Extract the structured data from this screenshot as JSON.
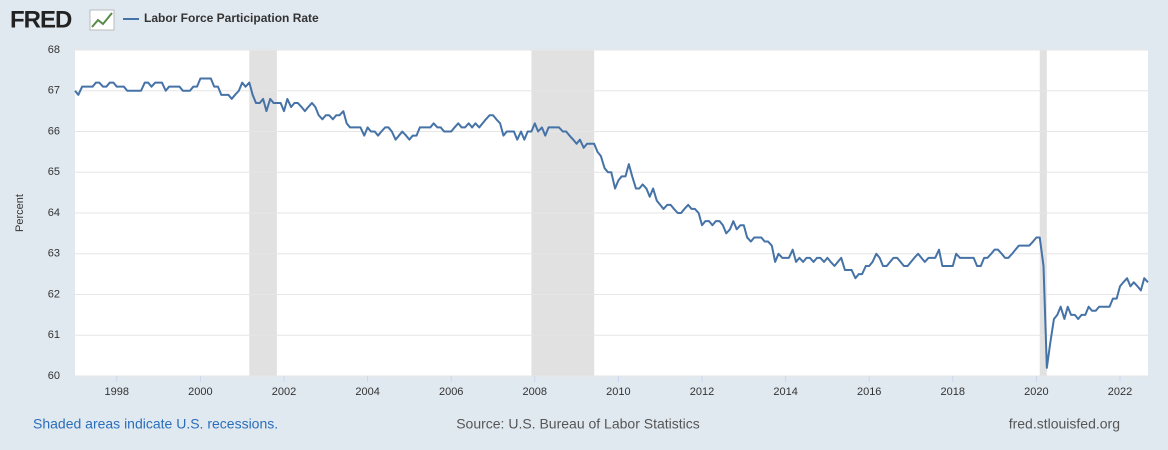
{
  "header": {
    "logo": "FRED"
  },
  "chart_data": {
    "type": "line",
    "series": [
      {
        "name": "Labor Force Participation Rate",
        "color": "#4572a7",
        "values": [
          67.0,
          66.9,
          67.1,
          67.1,
          67.1,
          67.1,
          67.2,
          67.2,
          67.1,
          67.1,
          67.2,
          67.2,
          67.1,
          67.1,
          67.1,
          67.0,
          67.0,
          67.0,
          67.0,
          67.0,
          67.2,
          67.2,
          67.1,
          67.2,
          67.2,
          67.2,
          67.0,
          67.1,
          67.1,
          67.1,
          67.1,
          67.0,
          67.0,
          67.0,
          67.1,
          67.1,
          67.3,
          67.3,
          67.3,
          67.3,
          67.1,
          67.1,
          66.9,
          66.9,
          66.9,
          66.8,
          66.9,
          67.0,
          67.2,
          67.1,
          67.2,
          66.9,
          66.7,
          66.7,
          66.8,
          66.5,
          66.8,
          66.7,
          66.7,
          66.7,
          66.5,
          66.8,
          66.6,
          66.7,
          66.7,
          66.6,
          66.5,
          66.6,
          66.7,
          66.6,
          66.4,
          66.3,
          66.4,
          66.4,
          66.3,
          66.4,
          66.4,
          66.5,
          66.2,
          66.1,
          66.1,
          66.1,
          66.1,
          65.9,
          66.1,
          66.0,
          66.0,
          65.9,
          66.0,
          66.1,
          66.1,
          66.0,
          65.8,
          65.9,
          66.0,
          65.9,
          65.8,
          65.9,
          65.9,
          66.1,
          66.1,
          66.1,
          66.1,
          66.2,
          66.1,
          66.1,
          66.0,
          66.0,
          66.0,
          66.1,
          66.2,
          66.1,
          66.1,
          66.2,
          66.1,
          66.2,
          66.1,
          66.2,
          66.3,
          66.4,
          66.4,
          66.3,
          66.2,
          65.9,
          66.0,
          66.0,
          66.0,
          65.8,
          66.0,
          65.8,
          66.0,
          66.0,
          66.2,
          66.0,
          66.1,
          65.9,
          66.1,
          66.1,
          66.1,
          66.1,
          66.0,
          66.0,
          65.9,
          65.8,
          65.7,
          65.8,
          65.6,
          65.7,
          65.7,
          65.7,
          65.5,
          65.4,
          65.1,
          65.0,
          65.0,
          64.6,
          64.8,
          64.9,
          64.9,
          65.2,
          64.9,
          64.6,
          64.6,
          64.7,
          64.6,
          64.4,
          64.6,
          64.3,
          64.2,
          64.1,
          64.2,
          64.2,
          64.1,
          64.0,
          64.0,
          64.1,
          64.2,
          64.1,
          64.1,
          64.0,
          63.7,
          63.8,
          63.8,
          63.7,
          63.8,
          63.8,
          63.7,
          63.5,
          63.6,
          63.8,
          63.6,
          63.7,
          63.7,
          63.4,
          63.3,
          63.4,
          63.4,
          63.4,
          63.3,
          63.3,
          63.2,
          62.8,
          63.0,
          62.9,
          62.9,
          62.9,
          63.1,
          62.8,
          62.9,
          62.8,
          62.9,
          62.9,
          62.8,
          62.9,
          62.9,
          62.8,
          62.9,
          62.8,
          62.7,
          62.8,
          62.9,
          62.6,
          62.6,
          62.6,
          62.4,
          62.5,
          62.5,
          62.7,
          62.7,
          62.8,
          63.0,
          62.9,
          62.7,
          62.7,
          62.8,
          62.9,
          62.9,
          62.8,
          62.7,
          62.7,
          62.8,
          62.9,
          63.0,
          62.9,
          62.8,
          62.9,
          62.9,
          62.9,
          63.1,
          62.7,
          62.7,
          62.7,
          62.7,
          63.0,
          62.9,
          62.9,
          62.9,
          62.9,
          62.9,
          62.7,
          62.7,
          62.9,
          62.9,
          63.0,
          63.1,
          63.1,
          63.0,
          62.9,
          62.9,
          63.0,
          63.1,
          63.2,
          63.2,
          63.2,
          63.2,
          63.3,
          63.4,
          63.4,
          62.7,
          60.2,
          60.8,
          61.4,
          61.5,
          61.7,
          61.4,
          61.7,
          61.5,
          61.5,
          61.4,
          61.5,
          61.5,
          61.7,
          61.6,
          61.6,
          61.7,
          61.7,
          61.7,
          61.7,
          61.9,
          61.9,
          62.2,
          62.3,
          62.4,
          62.2,
          62.3,
          62.2,
          62.1,
          62.4,
          62.3
        ]
      }
    ],
    "x": [
      1997,
      1997.08,
      1997.17,
      1997.25,
      1997.33,
      1997.42,
      1997.5,
      1997.58,
      1997.67,
      1997.75,
      1997.83,
      1997.92,
      1998,
      1998.08,
      1998.17,
      1998.25,
      1998.33,
      1998.42,
      1998.5,
      1998.58,
      1998.67,
      1998.75,
      1998.83,
      1998.92,
      1999,
      1999.08,
      1999.17,
      1999.25,
      1999.33,
      1999.42,
      1999.5,
      1999.58,
      1999.67,
      1999.75,
      1999.83,
      1999.92,
      2000,
      2000.08,
      2000.17,
      2000.25,
      2000.33,
      2000.42,
      2000.5,
      2000.58,
      2000.67,
      2000.75,
      2000.83,
      2000.92,
      2001,
      2001.08,
      2001.17,
      2001.25,
      2001.33,
      2001.42,
      2001.5,
      2001.58,
      2001.67,
      2001.75,
      2001.83,
      2001.92,
      2002,
      2002.08,
      2002.17,
      2002.25,
      2002.33,
      2002.42,
      2002.5,
      2002.58,
      2002.67,
      2002.75,
      2002.83,
      2002.92,
      2003,
      2003.08,
      2003.17,
      2003.25,
      2003.33,
      2003.42,
      2003.5,
      2003.58,
      2003.67,
      2003.75,
      2003.83,
      2003.92,
      2004,
      2004.08,
      2004.17,
      2004.25,
      2004.33,
      2004.42,
      2004.5,
      2004.58,
      2004.67,
      2004.75,
      2004.83,
      2004.92,
      2005,
      2005.08,
      2005.17,
      2005.25,
      2005.33,
      2005.42,
      2005.5,
      2005.58,
      2005.67,
      2005.75,
      2005.83,
      2005.92,
      2006,
      2006.08,
      2006.17,
      2006.25,
      2006.33,
      2006.42,
      2006.5,
      2006.58,
      2006.67,
      2006.75,
      2006.83,
      2006.92,
      2007,
      2007.08,
      2007.17,
      2007.25,
      2007.33,
      2007.42,
      2007.5,
      2007.58,
      2007.67,
      2007.75,
      2007.83,
      2007.92,
      2008,
      2008.08,
      2008.17,
      2008.25,
      2008.33,
      2008.42,
      2008.5,
      2008.58,
      2008.67,
      2008.75,
      2008.83,
      2008.92,
      2009,
      2009.08,
      2009.17,
      2009.25,
      2009.33,
      2009.42,
      2009.5,
      2009.58,
      2009.67,
      2009.75,
      2009.83,
      2009.92,
      2010,
      2010.08,
      2010.17,
      2010.25,
      2010.33,
      2010.42,
      2010.5,
      2010.58,
      2010.67,
      2010.75,
      2010.83,
      2010.92,
      2011,
      2011.08,
      2011.17,
      2011.25,
      2011.33,
      2011.42,
      2011.5,
      2011.58,
      2011.67,
      2011.75,
      2011.83,
      2011.92,
      2012,
      2012.08,
      2012.17,
      2012.25,
      2012.33,
      2012.42,
      2012.5,
      2012.58,
      2012.67,
      2012.75,
      2012.83,
      2012.92,
      2013,
      2013.08,
      2013.17,
      2013.25,
      2013.33,
      2013.42,
      2013.5,
      2013.58,
      2013.67,
      2013.75,
      2013.83,
      2013.92,
      2014,
      2014.08,
      2014.17,
      2014.25,
      2014.33,
      2014.42,
      2014.5,
      2014.58,
      2014.67,
      2014.75,
      2014.83,
      2014.92,
      2015,
      2015.08,
      2015.17,
      2015.25,
      2015.33,
      2015.42,
      2015.5,
      2015.58,
      2015.67,
      2015.75,
      2015.83,
      2015.92,
      2016,
      2016.08,
      2016.17,
      2016.25,
      2016.33,
      2016.42,
      2016.5,
      2016.58,
      2016.67,
      2016.75,
      2016.83,
      2016.92,
      2017,
      2017.08,
      2017.17,
      2017.25,
      2017.33,
      2017.42,
      2017.5,
      2017.58,
      2017.67,
      2017.75,
      2017.83,
      2017.92,
      2018,
      2018.08,
      2018.17,
      2018.25,
      2018.33,
      2018.42,
      2018.5,
      2018.58,
      2018.67,
      2018.75,
      2018.83,
      2018.92,
      2019,
      2019.08,
      2019.17,
      2019.25,
      2019.33,
      2019.42,
      2019.5,
      2019.58,
      2019.67,
      2019.75,
      2019.83,
      2019.92,
      2020,
      2020.08,
      2020.17,
      2020.25,
      2020.33,
      2020.42,
      2020.5,
      2020.58,
      2020.67,
      2020.75,
      2020.83,
      2020.92,
      2021,
      2021.08,
      2021.17,
      2021.25,
      2021.33,
      2021.42,
      2021.5,
      2021.58,
      2021.67,
      2021.75,
      2021.83,
      2021.92,
      2022,
      2022.08,
      2022.17,
      2022.25,
      2022.33,
      2022.42,
      2022.5,
      2022.58,
      2022.67
    ],
    "recessions": [
      [
        2001.17,
        2001.83
      ],
      [
        2007.92,
        2009.42
      ],
      [
        2020.08,
        2020.25
      ]
    ],
    "recession_color": "#e1e1e1",
    "xlim": [
      1997,
      2022.67
    ],
    "xticks": [
      1998,
      2000,
      2002,
      2004,
      2006,
      2008,
      2010,
      2012,
      2014,
      2016,
      2018,
      2020,
      2022
    ],
    "ylim": [
      60,
      68
    ],
    "yticks": [
      60,
      61,
      62,
      63,
      64,
      65,
      66,
      67,
      68
    ],
    "ylabel": "Percent",
    "grid": true
  },
  "footer": {
    "note": "Shaded areas indicate U.S. recessions.",
    "source": "Source: U.S. Bureau of Labor Statistics",
    "site": "fred.stlouisfed.org"
  }
}
